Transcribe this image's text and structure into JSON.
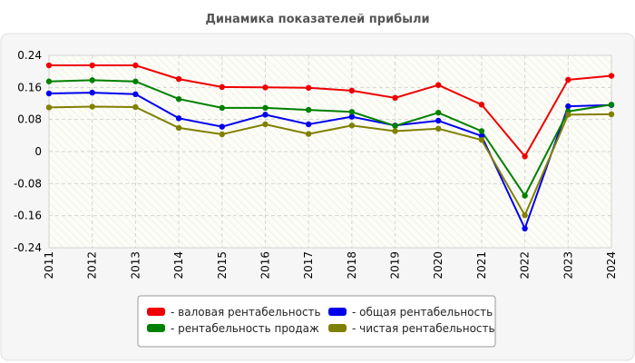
{
  "chart_data": {
    "type": "line",
    "title": "Динамика показателей прибыли",
    "xlabel": "",
    "ylabel": "",
    "x": [
      "2011",
      "2012",
      "2013",
      "2014",
      "2015",
      "2016",
      "2017",
      "2018",
      "2019",
      "2020",
      "2021",
      "2022",
      "2023",
      "2024"
    ],
    "ylim": [
      -0.24,
      0.24
    ],
    "yticks": [
      "0.24",
      "0.16",
      "0.08",
      "0",
      "-0.08",
      "-0.16",
      "-0.24"
    ],
    "grid": true,
    "legend_position": "bottom",
    "series": [
      {
        "name": "- валовая рентабельность",
        "color": "#ee0000",
        "values": [
          0.215,
          0.215,
          0.215,
          0.181,
          0.161,
          0.16,
          0.159,
          0.152,
          0.134,
          0.166,
          0.117,
          -0.012,
          0.179,
          0.189
        ]
      },
      {
        "name": "- общая рентабельность",
        "color": "#0000ee",
        "values": [
          0.145,
          0.147,
          0.143,
          0.083,
          0.062,
          0.092,
          0.068,
          0.087,
          0.065,
          0.077,
          0.039,
          -0.192,
          0.113,
          0.116
        ]
      },
      {
        "name": "- рентабельность продаж",
        "color": "#008000",
        "values": [
          0.175,
          0.178,
          0.175,
          0.131,
          0.109,
          0.109,
          0.104,
          0.099,
          0.064,
          0.097,
          0.051,
          -0.11,
          0.1,
          0.117
        ]
      },
      {
        "name": "- чистая рентабельность",
        "color": "#808000",
        "values": [
          0.11,
          0.112,
          0.111,
          0.059,
          0.043,
          0.068,
          0.044,
          0.065,
          0.051,
          0.057,
          0.029,
          -0.159,
          0.092,
          0.093
        ]
      }
    ]
  }
}
